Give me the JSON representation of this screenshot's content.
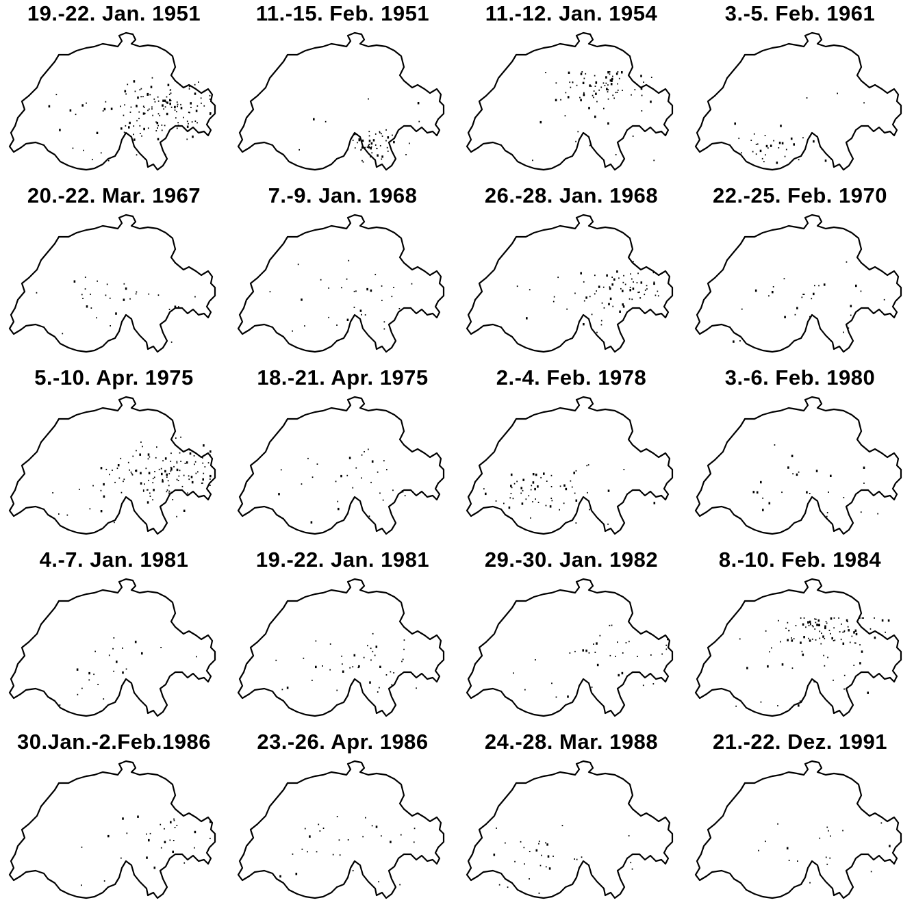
{
  "panels": [
    {
      "label": "19.-22. Jan. 1951",
      "density": 140,
      "focus": "east"
    },
    {
      "label": "11.-15. Feb. 1951",
      "density": 55,
      "focus": "ticino"
    },
    {
      "label": "11.-12. Jan. 1954",
      "density": 85,
      "focus": "north"
    },
    {
      "label": "3.-5. Feb. 1961",
      "density": 35,
      "focus": "valais"
    },
    {
      "label": "20.-22. Mar. 1967",
      "density": 30,
      "focus": "central"
    },
    {
      "label": "7.-9. Jan. 1968",
      "density": 30,
      "focus": "central"
    },
    {
      "label": "26.-28. Jan. 1968",
      "density": 70,
      "focus": "east"
    },
    {
      "label": "22.-25. Feb. 1970",
      "density": 28,
      "focus": "central"
    },
    {
      "label": "5.-10. Apr. 1975",
      "density": 130,
      "focus": "east"
    },
    {
      "label": "18.-21. Apr. 1975",
      "density": 30,
      "focus": "central"
    },
    {
      "label": "2.-4. Feb. 1978",
      "density": 60,
      "focus": "west"
    },
    {
      "label": "3.-6. Feb. 1980",
      "density": 25,
      "focus": "central"
    },
    {
      "label": "4.-7. Jan. 1981",
      "density": 22,
      "focus": "central"
    },
    {
      "label": "19.-22. Jan. 1981",
      "density": 40,
      "focus": "central"
    },
    {
      "label": "29.-30. Jan. 1982",
      "density": 35,
      "focus": "east"
    },
    {
      "label": "8.-10. Feb. 1984",
      "density": 110,
      "focus": "north"
    },
    {
      "label": "30.Jan.-2.Feb.1986",
      "density": 30,
      "focus": "east"
    },
    {
      "label": "23.-26. Apr. 1986",
      "density": 28,
      "focus": "central"
    },
    {
      "label": "24.-28. Mar. 1988",
      "density": 30,
      "focus": "west"
    },
    {
      "label": "21.-22. Dez. 1991",
      "density": 18,
      "focus": "central"
    }
  ]
}
